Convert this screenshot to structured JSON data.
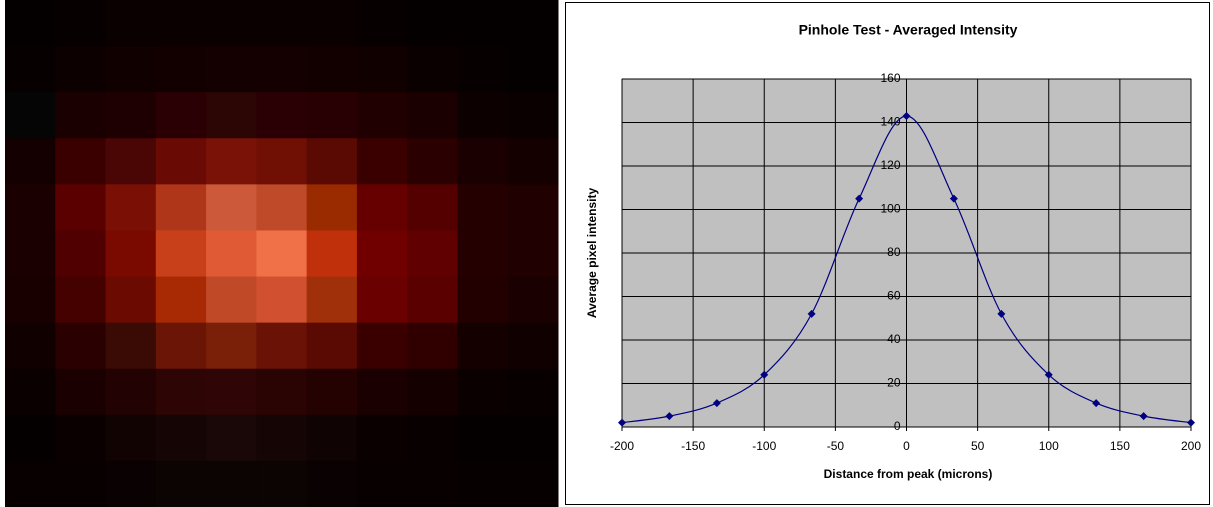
{
  "chart_data": {
    "type": "line",
    "title": "Pinhole Test - Averaged Intensity",
    "x_label": "Distance from peak (microns)",
    "y_label": "Average pixel intensity",
    "x": [
      -200,
      -166.7,
      -133.3,
      -100,
      -66.7,
      -33.3,
      0,
      33.3,
      66.7,
      100,
      133.3,
      166.7,
      200
    ],
    "values": [
      2,
      5,
      11,
      24,
      52,
      105,
      143,
      105,
      52,
      24,
      11,
      5,
      2
    ],
    "color": "#000080",
    "xlim": [
      -200,
      200
    ],
    "xticks": [
      -200,
      -150,
      -100,
      -50,
      0,
      50,
      100,
      150,
      200
    ],
    "ylim": [
      0,
      160
    ],
    "yticks": [
      0,
      20,
      40,
      60,
      80,
      100,
      120,
      140,
      160
    ],
    "grid": true,
    "plot_background": "#c0c0c0",
    "marker": "diamond",
    "smooth": true
  }
}
